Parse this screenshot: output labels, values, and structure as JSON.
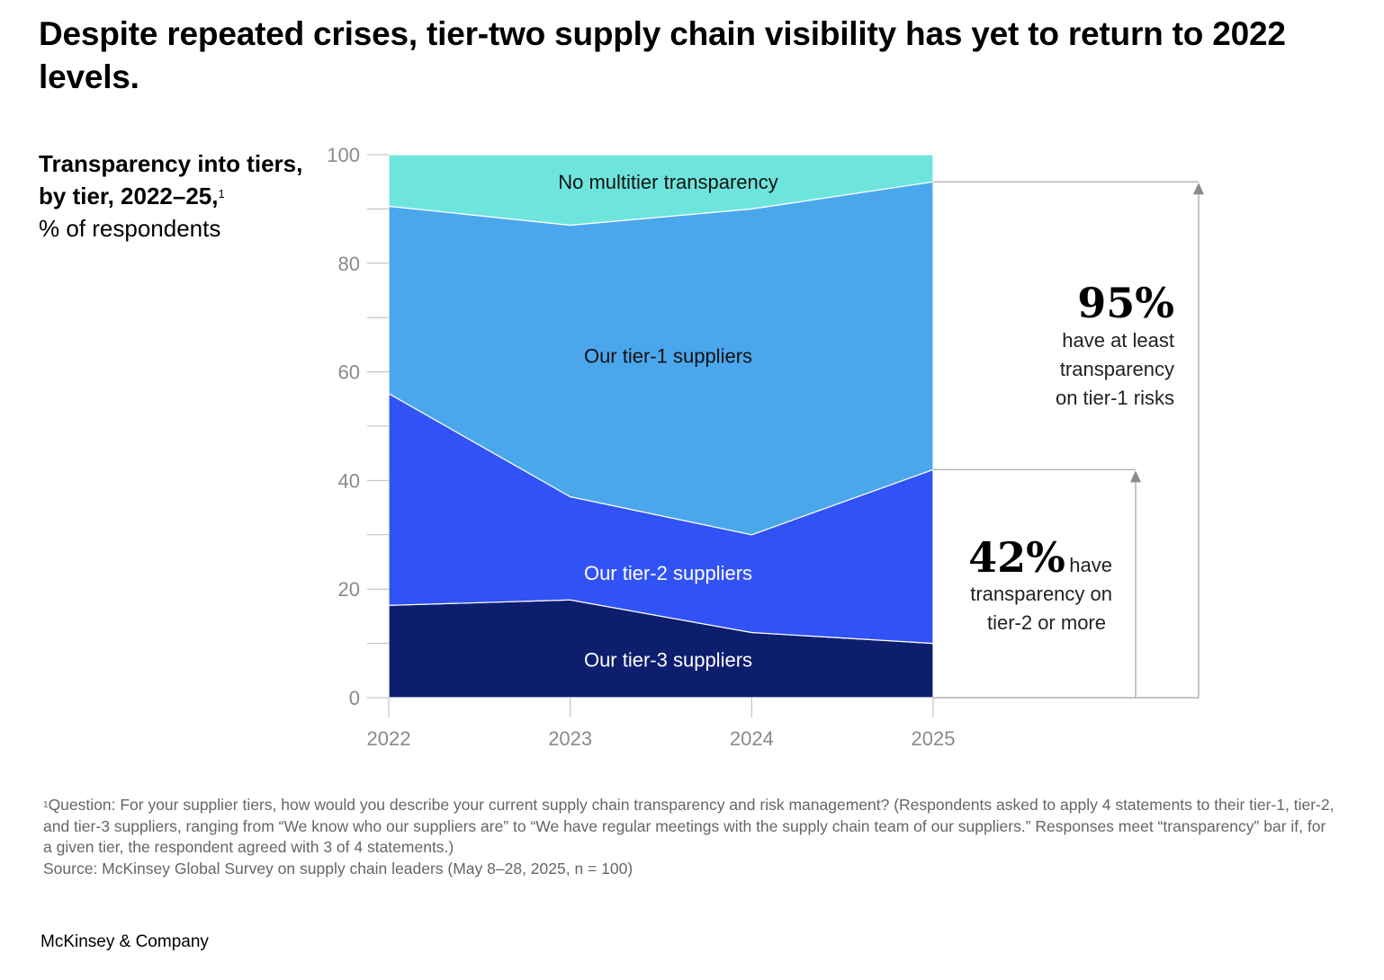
{
  "header": {
    "title": "Despite repeated crises, tier-two supply chain visibility has yet to return to 2022 levels."
  },
  "subtitle": {
    "main": "Transparency into tiers, by tier, 2022–25,",
    "marker": "1",
    "unit": "% of respondents"
  },
  "chart_data": {
    "type": "area",
    "stacked": true,
    "x": [
      "2022",
      "2023",
      "2024",
      "2025"
    ],
    "ylim": [
      0,
      100
    ],
    "yticks": [
      0,
      20,
      40,
      60,
      80,
      100
    ],
    "grid": false,
    "series": [
      {
        "name": "Our tier-3 suppliers",
        "values": [
          17,
          18,
          12,
          10
        ],
        "color": "#0e1e6e",
        "label_color": "#ffffff"
      },
      {
        "name": "Our tier-2 suppliers",
        "values": [
          39,
          19,
          18,
          32
        ],
        "color": "#3152f5",
        "label_color": "#ffffff"
      },
      {
        "name": "Our tier-1 suppliers",
        "values": [
          34.5,
          50,
          60,
          53
        ],
        "color": "#4ba7ec",
        "label_color": "#111111"
      },
      {
        "name": "No multitier transparency",
        "values": [
          9.5,
          13,
          10,
          5
        ],
        "color": "#6ee5dc",
        "label_color": "#111111"
      }
    ],
    "annotations": [
      {
        "value": "95%",
        "text": "have at least transparency on tier-1 risks",
        "level": 95
      },
      {
        "value": "42%",
        "text_lead": "have",
        "text": "transparency on tier-2 or more",
        "level": 42
      }
    ]
  },
  "footnote": {
    "marker": "1",
    "text": "Question: For your supplier tiers, how would you describe your current supply chain transparency and risk management? (Respondents asked to apply 4 statements to their tier-1, tier-2, and tier-3 suppliers, ranging from “We know who our suppliers are” to “We have regular meetings with the supply chain team of our suppliers.” Responses meet “transparency” bar if, for a given tier, the respondent agreed with 3 of 4 statements.)",
    "source": "Source: McKinsey Global Survey on supply chain leaders (May 8–28, 2025, n = 100)"
  },
  "brand": "McKinsey & Company"
}
